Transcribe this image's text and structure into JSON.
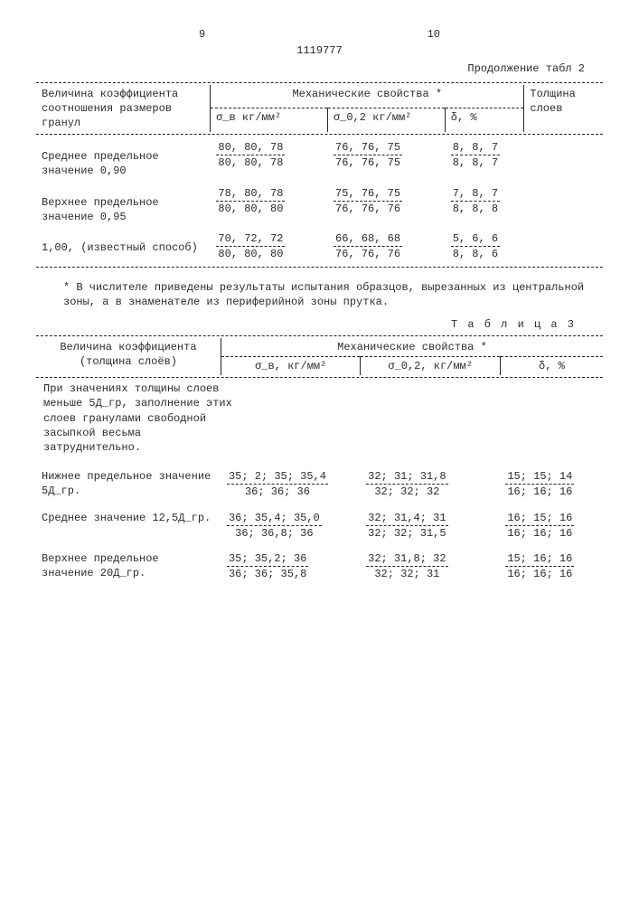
{
  "header": {
    "left_page": "9",
    "center_number": "1119777",
    "right_page": "10",
    "continuation": "Продолжение табл 2"
  },
  "table2": {
    "col1_header": "Величина коэффициента соотношения размеров гранул",
    "mech_header": "Механические свойства *",
    "col5_header": "Толщина слоев",
    "sub1": "σ_в кг/мм²",
    "sub2": "σ_0,2 кг/мм²",
    "sub3": "δ, %",
    "rows": [
      {
        "label": "Среднее предельное значение 0,90",
        "c1_num": "80, 80, 78",
        "c1_den": "80, 80, 78",
        "c2_num": "76, 76, 75",
        "c2_den": "76, 76, 75",
        "c3_num": "8, 8, 7",
        "c3_den": "8, 8, 7",
        "c4": ""
      },
      {
        "label": "Верхнее предельное значение 0,95",
        "c1_num": "78, 80, 78",
        "c1_den": "80, 80, 80",
        "c2_num": "75, 76, 75",
        "c2_den": "76, 76, 76",
        "c3_num": "7, 8, 7",
        "c3_den": "8, 8, 8",
        "c4": ""
      },
      {
        "label": "1,00, (известный способ)",
        "c1_num": "70, 72, 72",
        "c1_den": "80, 80, 80",
        "c2_num": "66, 68, 68",
        "c2_den": "76, 76, 76",
        "c3_num": "5, 6, 6",
        "c3_den": "8, 8, 6",
        "c4": ""
      }
    ]
  },
  "footnote": "* В числителе приведены результаты испытания образцов, вырезанных из центральной зоны, а в знаменателе из периферийной зоны прутка.",
  "table3_label": "Т а б л и ц а  3",
  "table3": {
    "col1_header": "Величина коэффициента (толщина слоёв)",
    "mech_header": "Механические свойства *",
    "sub1": "σ_в, кг/мм²",
    "sub2": "σ_0,2, кг/мм²",
    "sub3": "δ, %",
    "note": "При значениях толщины слоев меньше 5Д_гр, заполнение этих слоев гранулами свободной засыпкой весьма затруднительно.",
    "rows": [
      {
        "label": "Нижнее предельное значение 5Д_гр.",
        "c1_num": "35; 2; 35; 35,4",
        "c1_den": "36; 36; 36",
        "c2_num": "32; 31; 31,8",
        "c2_den": "32; 32; 32",
        "c3_num": "15; 15; 14",
        "c3_den": "16; 16; 16"
      },
      {
        "label": "Среднее значение 12,5Д_гр.",
        "c1_num": "36; 35,4; 35,0",
        "c1_den": "36; 36,8; 36",
        "c2_num": "32; 31,4; 31",
        "c2_den": "32; 32; 31,5",
        "c3_num": "16; 15; 16",
        "c3_den": "16; 16; 16"
      },
      {
        "label": "Верхнее предельное значение 20Д_гр.",
        "c1_num": "35; 35,2; 36",
        "c1_den": "36; 36; 35,8",
        "c2_num": "32; 31,8; 32",
        "c2_den": "32; 32; 31",
        "c3_num": "15; 16; 16",
        "c3_den": "16; 16; 16"
      }
    ]
  },
  "style": {
    "bg": "#ffffff",
    "text": "#2b2b2b",
    "dash": "#222222",
    "font_family": "Courier New",
    "font_size": 12
  }
}
